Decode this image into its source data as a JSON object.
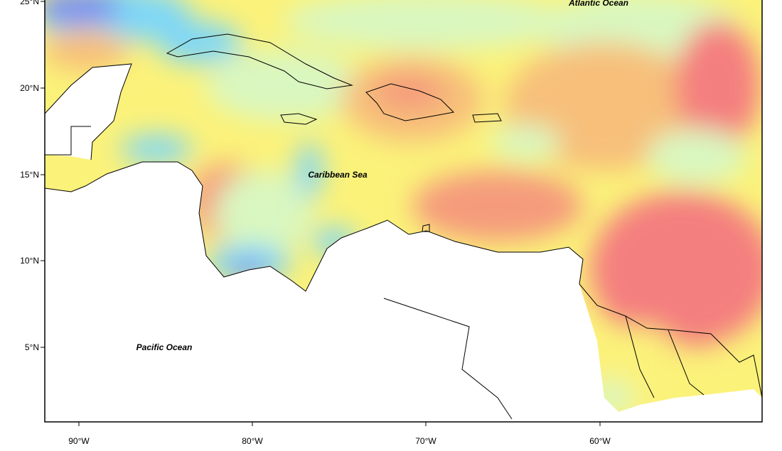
{
  "map": {
    "labels": [
      "Atlantic Ocean",
      "Caribbean Sea",
      "Pacific Ocean"
    ],
    "lat_ticks": [
      "25°N",
      "20°N",
      "15°N",
      "10°N",
      "5°N"
    ],
    "lon_ticks": [
      "90°W",
      "80°W",
      "70°W",
      "60°W"
    ]
  }
}
